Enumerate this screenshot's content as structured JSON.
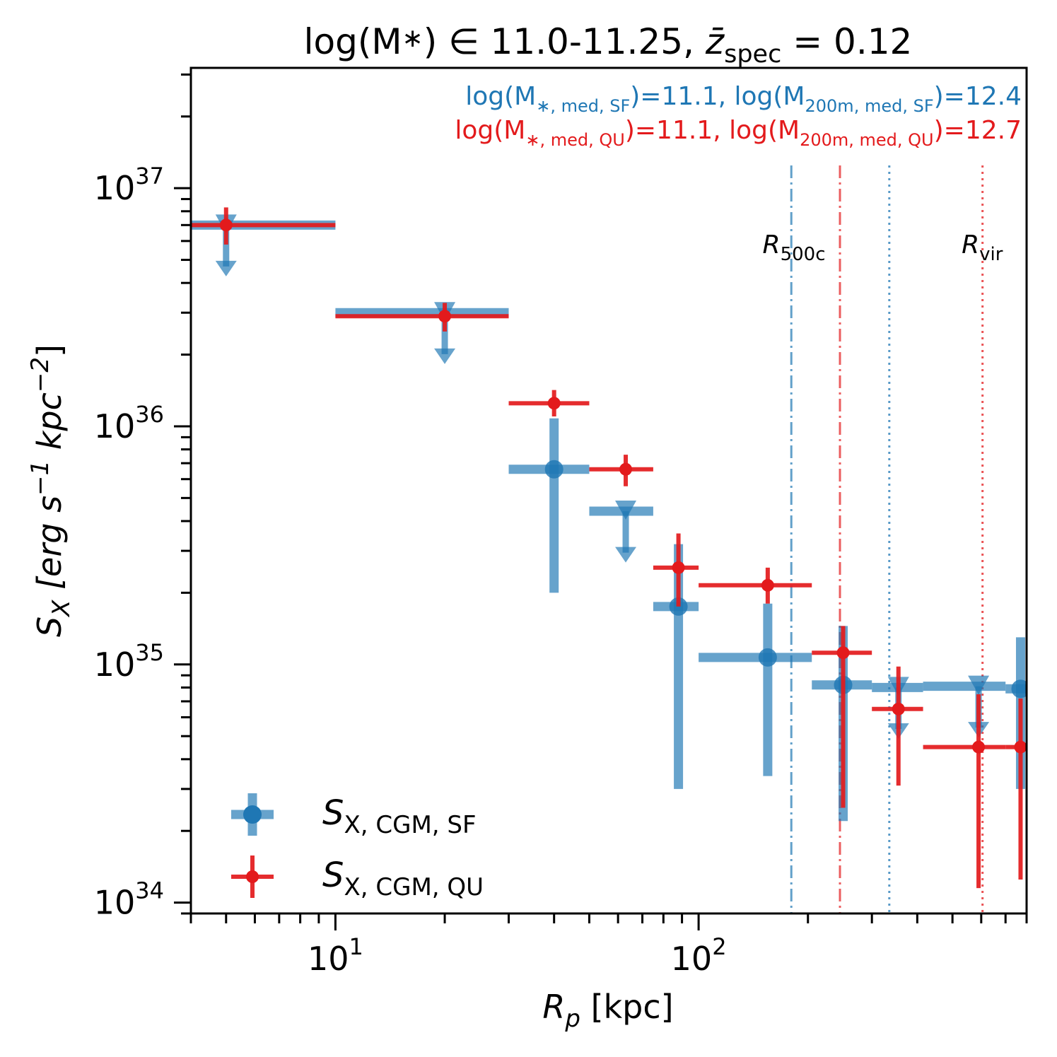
{
  "chart_data": {
    "type": "scatter",
    "title_main": "log(M",
    "title_star": "∗",
    "title_mid": ") ∈  11.0-11.25, ",
    "title_z": "z̄",
    "title_z_sub": "spec",
    "title_end": " = 0.12",
    "xlabel": "R",
    "xlabel_sub": "p",
    "xlabel_unit": " [kpc]",
    "ylabel": "S",
    "ylabel_sub": "X",
    "ylabel_unit": " [erg s",
    "ylabel_unit_exp1": "−1",
    "ylabel_unit_mid": " kpc",
    "ylabel_unit_exp2": "−2",
    "ylabel_unit_end": "]",
    "x_scale": "log",
    "y_scale": "log",
    "xlim": [
      4,
      800
    ],
    "ylim": [
      9e+33,
      3.2e+37
    ],
    "x_ticks": [
      {
        "value": 10,
        "base": "10",
        "exp": "1"
      },
      {
        "value": 100,
        "base": "10",
        "exp": "2"
      }
    ],
    "y_ticks": [
      {
        "value": 1e+34,
        "base": "10",
        "exp": "34"
      },
      {
        "value": 1e+35,
        "base": "10",
        "exp": "35"
      },
      {
        "value": 1e+36,
        "base": "10",
        "exp": "36"
      },
      {
        "value": 1e+37,
        "base": "10",
        "exp": "37"
      }
    ],
    "annotations": [
      {
        "color": "#1f77b4",
        "p1": "log(M",
        "s1": "∗, med, SF",
        "p2": ")=11.1, log(M",
        "s2": "200m, med, SF",
        "p3": ")=12.4"
      },
      {
        "color": "#e31a1c",
        "p1": "log(M",
        "s1": "∗, med, QU",
        "p2": ")=11.1, log(M",
        "s2": "200m, med, QU",
        "p3": ")=12.7"
      }
    ],
    "radii_labels": [
      {
        "label": "R",
        "sub": "500c",
        "x": 150
      },
      {
        "label": "R",
        "sub": "vir",
        "x": 530
      }
    ],
    "vlines": [
      {
        "series": "SF",
        "kind": "R500c",
        "x": 180,
        "style": "dashdot",
        "color": "#1f77b4"
      },
      {
        "series": "QU",
        "kind": "R500c",
        "x": 245,
        "style": "dashdot",
        "color": "#e31a1c"
      },
      {
        "series": "SF",
        "kind": "Rvir",
        "x": 335,
        "style": "dotted",
        "color": "#1f77b4"
      },
      {
        "series": "QU",
        "kind": "Rvir",
        "x": 605,
        "style": "dotted",
        "color": "#e31a1c"
      }
    ],
    "legend": {
      "position": "lower-left",
      "entries": [
        {
          "label": "S",
          "sub": "X, CGM, SF",
          "color": "#1f77b4",
          "marker": "circle"
        },
        {
          "label": "S",
          "sub": "X, CGM, QU",
          "color": "#e31a1c",
          "marker": "dot"
        }
      ]
    },
    "series": [
      {
        "name": "SF",
        "color": "#1f77b4",
        "points": [
          {
            "x": 5,
            "xlo": 4,
            "xhi": 10,
            "y": 7e+36,
            "upper_limit": true
          },
          {
            "x": 20,
            "xlo": 10,
            "xhi": 30,
            "y": 3e+36,
            "upper_limit": true
          },
          {
            "x": 40,
            "xlo": 30,
            "xhi": 50,
            "y": 6.6e+35,
            "ylo": 2e+35,
            "yhi": 1.08e+36
          },
          {
            "x": 63,
            "xlo": 50,
            "xhi": 75,
            "y": 4.4e+35,
            "upper_limit": true
          },
          {
            "x": 88,
            "xlo": 75,
            "xhi": 100,
            "y": 1.75e+35,
            "ylo": 3e+34,
            "yhi": 3.2e+35
          },
          {
            "x": 155,
            "xlo": 100,
            "xhi": 205,
            "y": 1.07e+35,
            "ylo": 3.4e+34,
            "yhi": 1.8e+35
          },
          {
            "x": 250,
            "xlo": 205,
            "xhi": 300,
            "y": 8.2e+34,
            "ylo": 2.2e+34,
            "yhi": 1.45e+35
          },
          {
            "x": 355,
            "xlo": 300,
            "xhi": 415,
            "y": 8e+34,
            "upper_limit": true
          },
          {
            "x": 590,
            "xlo": 415,
            "xhi": 700,
            "y": 8.1e+34,
            "upper_limit": true
          },
          {
            "x": 770,
            "xlo": 700,
            "xhi": 800,
            "y": 7.9e+34,
            "ylo": 3e+34,
            "yhi": 1.3e+35
          }
        ]
      },
      {
        "name": "QU",
        "color": "#e31a1c",
        "points": [
          {
            "x": 5,
            "xlo": 4,
            "xhi": 10,
            "y": 7e+36,
            "ylo": 5.8e+36,
            "yhi": 8.3e+36
          },
          {
            "x": 20,
            "xlo": 10,
            "xhi": 30,
            "y": 2.9e+36,
            "ylo": 2.5e+36,
            "yhi": 3.3e+36
          },
          {
            "x": 40,
            "xlo": 30,
            "xhi": 50,
            "y": 1.25e+36,
            "ylo": 1.1e+36,
            "yhi": 1.42e+36
          },
          {
            "x": 63,
            "xlo": 50,
            "xhi": 75,
            "y": 6.6e+35,
            "ylo": 5.6e+35,
            "yhi": 7.6e+35
          },
          {
            "x": 88,
            "xlo": 75,
            "xhi": 100,
            "y": 2.55e+35,
            "ylo": 1.75e+35,
            "yhi": 3.55e+35
          },
          {
            "x": 155,
            "xlo": 100,
            "xhi": 205,
            "y": 2.15e+35,
            "ylo": 1.8e+35,
            "yhi": 2.55e+35
          },
          {
            "x": 250,
            "xlo": 205,
            "xhi": 300,
            "y": 1.12e+35,
            "ylo": 2.5e+34,
            "yhi": 1.45e+35
          },
          {
            "x": 355,
            "xlo": 300,
            "xhi": 415,
            "y": 6.5e+34,
            "ylo": 3.1e+34,
            "yhi": 9.8e+34
          },
          {
            "x": 590,
            "xlo": 415,
            "xhi": 700,
            "y": 4.5e+34,
            "ylo": 1.15e+34,
            "yhi": 7.5e+34
          },
          {
            "x": 770,
            "xlo": 700,
            "xhi": 800,
            "y": 4.5e+34,
            "ylo": 1.25e+34,
            "yhi": 7.2e+34
          }
        ]
      }
    ]
  }
}
